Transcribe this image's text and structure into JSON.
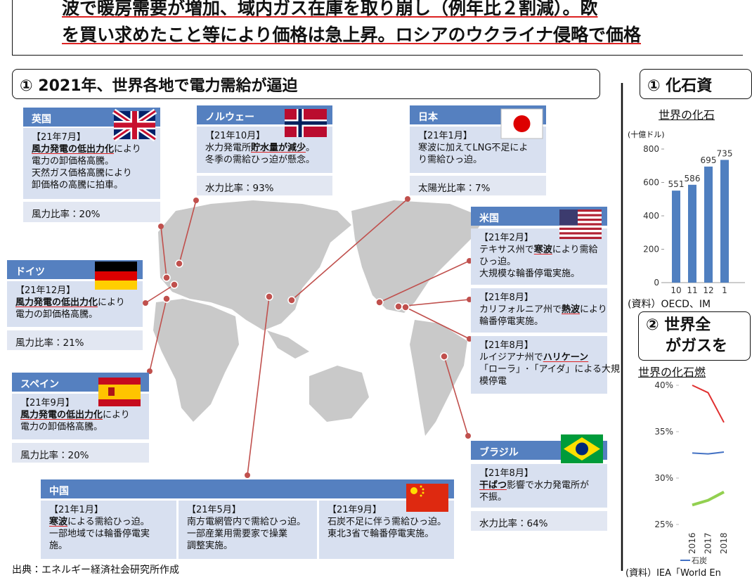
{
  "header": {
    "lines": [
      "波で暖房需要が増加、域内ガス在庫を取り崩し（例年比２割減）。欧",
      "を買い求めたこと等により価格は急上昇。ロシアのウクライナ侵略で価格"
    ]
  },
  "section_title": "① 2021年、世界各地で電力需給が逼迫",
  "regions": [
    {
      "name": "英国",
      "blocks": [
        [
          [
            "【21年7月】"
          ],
          [
            {
              "text": "風力発電の低出力化",
              "emphasis": true
            },
            "により"
          ],
          [
            "電力の卸価格高騰。"
          ],
          [
            "天然ガス価格高騰により"
          ],
          [
            "卸価格の高騰に拍車。"
          ]
        ]
      ],
      "ratio": "風力比率：20%"
    },
    {
      "name": "ノルウェー",
      "blocks": [
        [
          [
            "【21年10月】"
          ],
          [
            "水力発電所",
            {
              "text": "貯水量が減少",
              "emphasis": true
            },
            "。"
          ],
          [
            "冬季の需給ひっ迫が懸念。"
          ]
        ]
      ],
      "ratio": "水力比率：93%"
    },
    {
      "name": "日本",
      "blocks": [
        [
          [
            "【21年1月】"
          ],
          [
            "寒波に加えてLNG不足によ"
          ],
          [
            "り需給ひっ迫。"
          ]
        ]
      ],
      "ratio": "太陽光比率：7%"
    },
    {
      "name": "米国",
      "blocks": [
        [
          [
            "【21年2月】"
          ],
          [
            "テキサス州で",
            {
              "text": "寒波",
              "emphasis": true
            },
            "により需給"
          ],
          [
            "ひっ迫。"
          ],
          [
            "大規模な輪番停電実施。"
          ]
        ],
        [
          [
            "【21年8月】"
          ],
          [
            "カリフォルニア州で",
            {
              "text": "熱波",
              "emphasis": true
            },
            "により"
          ],
          [
            "輪番停電実施。"
          ]
        ],
        [
          [
            "【21年8月】"
          ],
          [
            "ルイジアナ州で",
            {
              "text": "ハリケーン",
              "emphasis": true
            }
          ],
          [
            "「ローラ」･「アイダ」による大規"
          ],
          [
            "模停電"
          ]
        ]
      ]
    },
    {
      "name": "ドイツ",
      "blocks": [
        [
          [
            "【21年12月】"
          ],
          [
            {
              "text": "風力発電の低出力化",
              "emphasis": true
            },
            "により"
          ],
          [
            "電力の卸価格高騰。"
          ]
        ]
      ],
      "ratio": "風力比率：21%"
    },
    {
      "name": "スペイン",
      "blocks": [
        [
          [
            "【21年9月】"
          ],
          [
            {
              "text": "風力発電の低出力化",
              "emphasis": true
            },
            "により"
          ],
          [
            "電力の卸価格高騰。"
          ]
        ]
      ],
      "ratio": "風力比率：20%"
    },
    {
      "name": "ブラジル",
      "blocks": [
        [
          [
            "【21年8月】"
          ],
          [
            {
              "text": "干ばつ",
              "emphasis": true
            },
            "影響で水力発電所が"
          ],
          [
            "不振。"
          ]
        ]
      ],
      "ratio": "水力比率：64%"
    },
    {
      "name": "中国",
      "blocks": [
        [
          [
            "【21年1月】"
          ],
          [
            {
              "text": "寒波",
              "emphasis": true
            },
            "による需給ひっ迫。"
          ],
          [
            "一部地域では輪番停電実"
          ],
          [
            "施。"
          ]
        ],
        [
          [
            "【21年5月】"
          ],
          [
            "南方電網管内で需給ひっ迫。"
          ],
          [
            "一部産業用需要家で操業"
          ],
          [
            "調整実施。"
          ]
        ],
        [
          [
            "【21年9月】"
          ],
          [
            "石炭不足に伴う需給ひっ迫。"
          ],
          [
            "東北3省で輪番停電実施。"
          ]
        ]
      ]
    }
  ],
  "footer": "出典：エネルギー経済社会研究所作成",
  "right_panel": {
    "section1_title": "① 化石資",
    "subtitle1": "世界の化石",
    "unit": "(十億ドル)",
    "source1": "(資料）OECD、IM",
    "section2_title_lines": [
      "② 世界全",
      "がガスを"
    ],
    "subtitle2": "世界の化石燃",
    "source2": "(資料）IEA「World En"
  },
  "chart_data": [
    {
      "type": "bar",
      "categories": [
        "10",
        "11",
        "12",
        "1"
      ],
      "values": [
        551,
        586,
        695,
        735
      ],
      "color": "#4f7fc0",
      "ylim": [
        0,
        800
      ],
      "yticks": [
        0,
        200,
        400,
        600,
        800
      ]
    },
    {
      "type": "line",
      "categories": [
        "2016",
        "2017",
        "2018"
      ],
      "series": [
        {
          "name": "石炭",
          "color": "#4472c4",
          "values": [
            32.7,
            32.6,
            32.8
          ]
        },
        {
          "color": "#e03030",
          "values": [
            40,
            39.2,
            36
          ]
        },
        {
          "color": "#92d050",
          "values": [
            27.1,
            27.6,
            28.5
          ]
        }
      ],
      "ylim": [
        25,
        40
      ],
      "yticks": [
        {
          "value": 25,
          "label": "25%"
        },
        {
          "value": 30,
          "label": "30%"
        },
        {
          "value": 35,
          "label": "35%"
        },
        {
          "value": 40,
          "label": "40%"
        }
      ]
    }
  ]
}
